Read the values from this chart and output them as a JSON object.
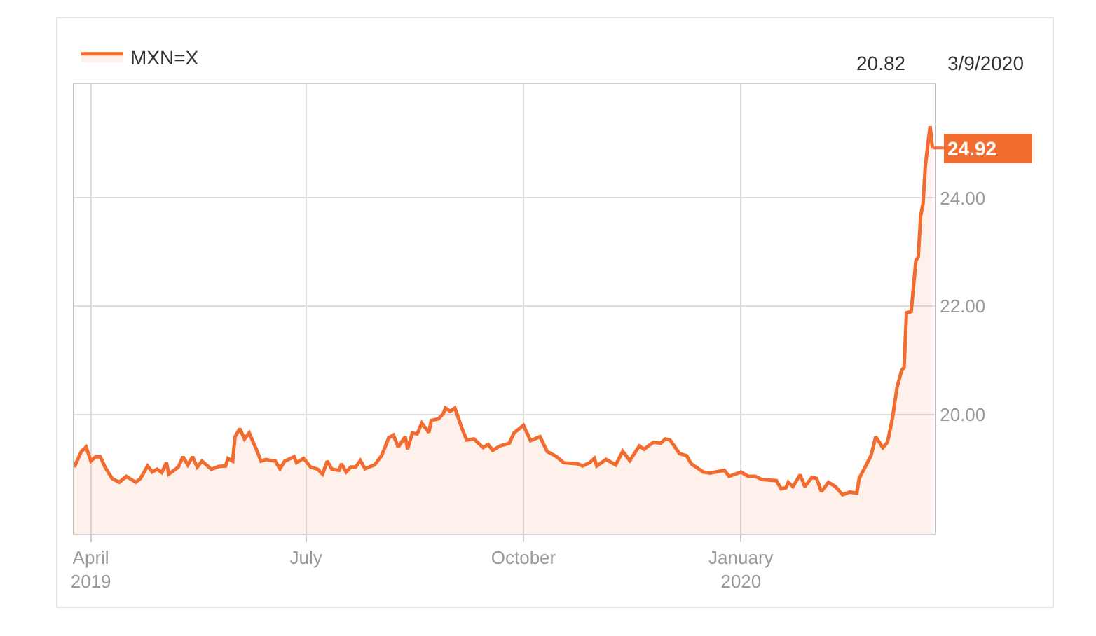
{
  "chart_data": {
    "type": "area",
    "legend": "top left",
    "grid": true,
    "line_style": "solid",
    "xlim": [
      "2019-03-25",
      "2020-03-23"
    ],
    "xticks": [
      {
        "value": "2019-04-01",
        "label": "April\n2019"
      },
      {
        "value": "2019-07-01",
        "label": "July"
      },
      {
        "value": "2019-10-01",
        "label": "October"
      },
      {
        "value": "2020-01-01",
        "label": "January\n2020"
      }
    ],
    "ylim": [
      17.8,
      26.1
    ],
    "yticks": [
      {
        "value": 20,
        "label": "20.00"
      },
      {
        "value": 22,
        "label": "22.00"
      },
      {
        "value": 24,
        "label": "24.00"
      }
    ],
    "x": [
      "2019-03-25",
      "2019-03-28",
      "2019-03-29",
      "2019-03-30",
      "2019-04-01",
      "2019-04-03",
      "2019-04-05",
      "2019-04-07",
      "2019-04-10",
      "2019-04-13",
      "2019-04-16",
      "2019-04-20",
      "2019-04-22",
      "2019-04-25",
      "2019-04-27",
      "2019-04-29",
      "2019-05-01",
      "2019-05-03",
      "2019-05-04",
      "2019-05-08",
      "2019-05-10",
      "2019-05-12",
      "2019-05-14",
      "2019-05-16",
      "2019-05-18",
      "2019-05-22",
      "2019-05-25",
      "2019-05-28",
      "2019-05-29",
      "2019-05-31",
      "2019-06-01",
      "2019-06-03",
      "2019-06-05",
      "2019-06-07",
      "2019-06-10",
      "2019-06-12",
      "2019-06-14",
      "2019-06-18",
      "2019-06-20",
      "2019-06-22",
      "2019-06-26",
      "2019-06-27",
      "2019-06-30",
      "2019-07-03",
      "2019-07-06",
      "2019-07-08",
      "2019-07-10",
      "2019-07-12",
      "2019-07-15",
      "2019-07-16",
      "2019-07-18",
      "2019-07-20",
      "2019-07-22",
      "2019-07-24",
      "2019-07-26",
      "2019-07-30",
      "2019-08-02",
      "2019-08-05",
      "2019-08-07",
      "2019-08-09",
      "2019-08-12",
      "2019-08-13",
      "2019-08-15",
      "2019-08-17",
      "2019-08-19",
      "2019-08-22",
      "2019-08-23",
      "2019-08-26",
      "2019-08-28",
      "2019-08-29",
      "2019-08-31",
      "2019-09-02",
      "2019-09-05",
      "2019-09-07",
      "2019-09-10",
      "2019-09-12",
      "2019-09-14",
      "2019-09-16",
      "2019-09-18",
      "2019-09-21",
      "2019-09-25",
      "2019-09-27",
      "2019-10-01",
      "2019-10-04",
      "2019-10-08",
      "2019-10-11",
      "2019-10-15",
      "2019-10-18",
      "2019-10-24",
      "2019-10-26",
      "2019-10-29",
      "2019-10-31",
      "2019-11-01",
      "2019-11-05",
      "2019-11-09",
      "2019-11-12",
      "2019-11-15",
      "2019-11-19",
      "2019-11-21",
      "2019-11-25",
      "2019-11-28",
      "2019-11-30",
      "2019-12-02",
      "2019-12-06",
      "2019-12-09",
      "2019-12-11",
      "2019-12-16",
      "2019-12-19",
      "2019-12-25",
      "2019-12-27",
      "2020-01-01",
      "2020-01-04",
      "2020-01-07",
      "2020-01-10",
      "2020-01-16",
      "2020-01-18",
      "2020-01-20",
      "2020-01-21",
      "2020-01-23",
      "2020-01-26",
      "2020-01-28",
      "2020-01-31",
      "2020-02-02",
      "2020-02-04",
      "2020-02-07",
      "2020-02-10",
      "2020-02-13",
      "2020-02-16",
      "2020-02-19",
      "2020-02-20",
      "2020-02-23",
      "2020-02-25",
      "2020-02-27",
      "2020-03-01",
      "2020-03-03",
      "2020-03-05",
      "2020-03-07",
      "2020-03-09",
      "2020-03-10",
      "2020-03-11",
      "2020-03-13",
      "2020-03-15",
      "2020-03-16",
      "2020-03-17",
      "2020-03-18",
      "2020-03-19",
      "2020-03-21",
      "2020-03-22"
    ],
    "series": [
      {
        "name": "MXN=X",
        "color": "#f26c2f",
        "values": [
          19.03,
          19.32,
          19.36,
          19.4,
          19.14,
          19.22,
          19.22,
          19.03,
          18.82,
          18.75,
          18.86,
          18.75,
          18.82,
          19.05,
          18.94,
          18.99,
          18.93,
          19.11,
          18.9,
          19.03,
          19.22,
          19.07,
          19.22,
          19.03,
          19.14,
          18.99,
          19.04,
          19.05,
          19.19,
          19.14,
          19.59,
          19.74,
          19.55,
          19.66,
          19.36,
          19.14,
          19.17,
          19.14,
          19.0,
          19.14,
          19.22,
          19.11,
          19.19,
          19.03,
          18.99,
          18.9,
          19.14,
          18.99,
          18.97,
          19.09,
          18.94,
          19.03,
          19.03,
          19.15,
          19.0,
          19.07,
          19.24,
          19.57,
          19.62,
          19.4,
          19.59,
          19.36,
          19.66,
          19.64,
          19.84,
          19.67,
          19.89,
          19.92,
          20.01,
          20.12,
          20.06,
          20.12,
          19.74,
          19.53,
          19.55,
          19.47,
          19.39,
          19.45,
          19.34,
          19.42,
          19.47,
          19.66,
          19.8,
          19.52,
          19.59,
          19.32,
          19.22,
          19.11,
          19.09,
          19.05,
          19.11,
          19.19,
          19.05,
          19.17,
          19.07,
          19.32,
          19.15,
          19.42,
          19.36,
          19.49,
          19.47,
          19.55,
          19.53,
          19.28,
          19.24,
          19.09,
          18.94,
          18.92,
          18.97,
          18.86,
          18.94,
          18.86,
          18.86,
          18.8,
          18.78,
          18.63,
          18.65,
          18.75,
          18.67,
          18.89,
          18.67,
          18.84,
          18.82,
          18.58,
          18.75,
          18.67,
          18.52,
          18.57,
          18.55,
          18.82,
          19.07,
          19.24,
          19.59,
          19.39,
          19.49,
          19.91,
          20.5,
          20.82,
          20.87,
          21.88,
          21.9,
          22.84,
          22.91,
          23.67,
          23.89,
          24.6,
          25.32,
          24.92
        ]
      }
    ],
    "annotations": [
      "20.82",
      "3/9/2020",
      {
        "text": "24.92",
        "x": "2020-03-22",
        "y": 24.92
      }
    ]
  }
}
